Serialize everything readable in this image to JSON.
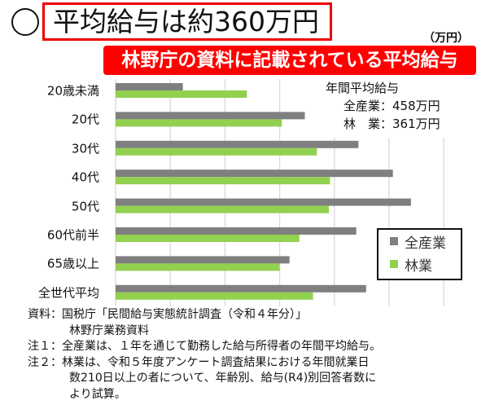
{
  "header": {
    "circle": "○",
    "title": "平均給与は約360万円",
    "unit": "（万円）",
    "banner": "林野庁の資料に記載されている平均給与"
  },
  "annotation": {
    "heading": "年間平均給与",
    "line1": "全産業：458万円",
    "line2": "林　業：361万円"
  },
  "chart_data": {
    "type": "bar",
    "orientation": "horizontal",
    "categories": [
      "20歳未満",
      "20代",
      "30代",
      "40代",
      "50代",
      "60代前半",
      "65歳以上",
      "全世代平均"
    ],
    "series": [
      {
        "name": "全産業",
        "color": "#7f7f7f",
        "values": [
          123,
          346,
          444,
          507,
          540,
          440,
          318,
          458
        ]
      },
      {
        "name": "林業",
        "color": "#92d050",
        "values": [
          240,
          304,
          368,
          392,
          390,
          336,
          300,
          361
        ]
      }
    ],
    "xlim": [
      0,
      600
    ],
    "x_grid_step": 100,
    "grid": true,
    "legend": "bottom-right",
    "unit": "万円"
  },
  "notes": [
    "資料：国税庁「民間給与実態統計調査（令和４年分）」",
    "林野庁業務資料",
    "注１：全産業は、１年を通じて勤務した給与所得者の年間平均給与。",
    "注２：林業は、令和５年度アンケート調査結果における年間就業日",
    "数210日以上の者について、年齢別、給与(R4)別回答者数に",
    "より試算。"
  ]
}
